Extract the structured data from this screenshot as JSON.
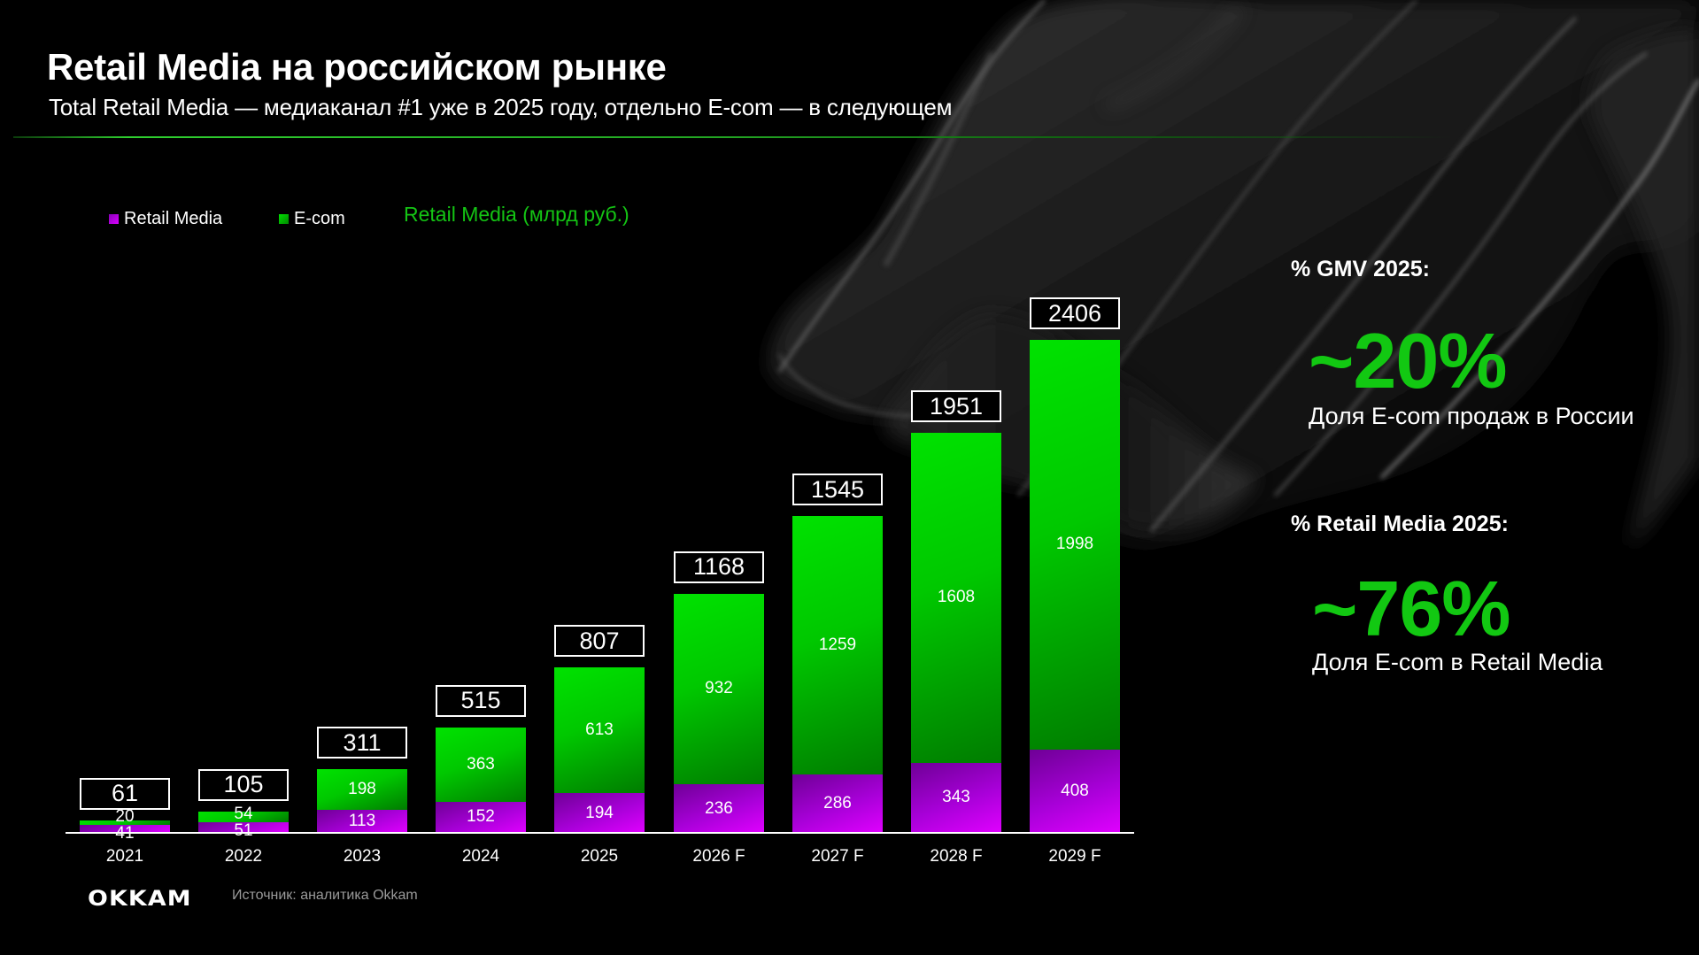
{
  "header": {
    "title": "Retail Media на российском рынке",
    "subtitle": "Total Retail Media — медиаканал #1 уже в 2025 году, отдельно E-com — в следующем"
  },
  "legend": {
    "items": [
      {
        "label": "Retail Media",
        "color": "#b000e8"
      },
      {
        "label": "E-com",
        "color": "#00c800"
      }
    ],
    "chart_title": "Retail Media (млрд руб.)"
  },
  "chart_data": {
    "type": "bar",
    "stacked": true,
    "title": "Retail Media (млрд руб.)",
    "xlabel": "",
    "ylabel": "",
    "categories": [
      "2021",
      "2022",
      "2023",
      "2024",
      "2025",
      "2026 F",
      "2027 F",
      "2028 F",
      "2029 F"
    ],
    "series": [
      {
        "name": "Retail Media",
        "color": "#b000e8",
        "values": [
          41,
          51,
          113,
          152,
          194,
          236,
          286,
          343,
          408
        ]
      },
      {
        "name": "E-com",
        "color": "#00c800",
        "values": [
          20,
          54,
          198,
          363,
          613,
          932,
          1259,
          1608,
          1998
        ]
      }
    ],
    "totals": [
      61,
      105,
      311,
      515,
      807,
      1168,
      1545,
      1951,
      2406
    ],
    "grid": false,
    "legend_position": "top-left",
    "ylim": [
      0,
      2500
    ]
  },
  "kpis": [
    {
      "label": "% GMV 2025:",
      "value": "~20%",
      "description": "Доля E-com продаж в России"
    },
    {
      "label": "% Retail Media 2025:",
      "value": "~76%",
      "description": "Доля E-com в Retail Media"
    }
  ],
  "footer": {
    "logo": "OKKAM",
    "source": "Источник: аналитика Okkam"
  },
  "colors": {
    "background": "#000000",
    "accent_green": "#12c812",
    "ecom_green": "#00c800",
    "retail_purple": "#b000e8",
    "text": "#ffffff",
    "muted": "#9a9a9a"
  }
}
